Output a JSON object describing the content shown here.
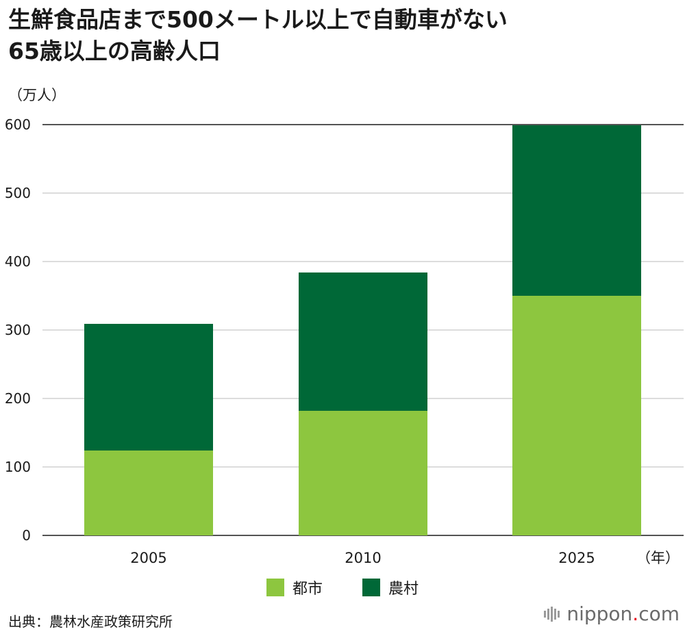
{
  "chart_data": {
    "type": "bar",
    "stacked": true,
    "title_lines": [
      "生鮮食品店まで500メートル以上で自動車がない",
      "65歳以上の高齢人口"
    ],
    "y_unit": "（万人）",
    "x_unit": "（年）",
    "categories": [
      "2005",
      "2010",
      "2025"
    ],
    "series": [
      {
        "name": "都市",
        "color": "#8dc63f",
        "values": [
          124,
          182,
          350
        ]
      },
      {
        "name": "農村",
        "color": "#006837",
        "values": [
          185,
          202,
          249
        ]
      }
    ],
    "ylim": [
      0,
      600
    ],
    "yticks": [
      0,
      100,
      200,
      300,
      400,
      500,
      600
    ],
    "grid": true,
    "legend_position": "bottom-center"
  },
  "source": "出典：農林水産政策研究所",
  "brand": {
    "name": "nippon",
    "dot": ".",
    "suffix": "com"
  }
}
